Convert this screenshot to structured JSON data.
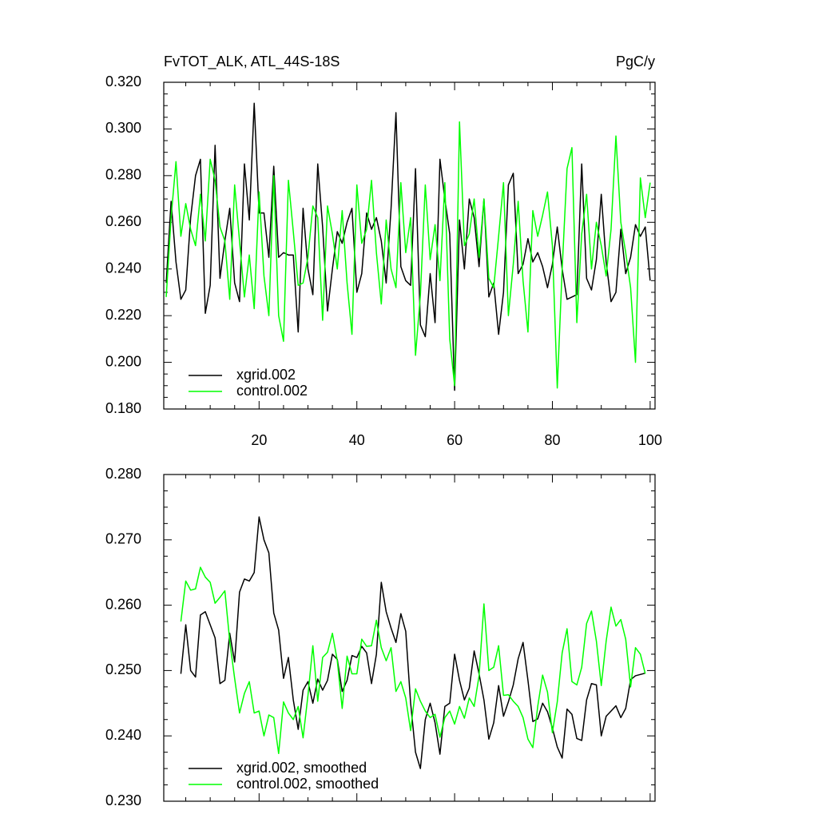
{
  "chart_data": [
    {
      "type": "line",
      "title": "FvTOT_ALK, ATL_44S-18S",
      "units_label": "PgC/y",
      "x": [
        1,
        2,
        3,
        4,
        5,
        6,
        7,
        8,
        9,
        10,
        11,
        12,
        13,
        14,
        15,
        16,
        17,
        18,
        19,
        20,
        21,
        22,
        23,
        24,
        25,
        26,
        27,
        28,
        29,
        30,
        31,
        32,
        33,
        34,
        35,
        36,
        37,
        38,
        39,
        40,
        41,
        42,
        43,
        44,
        45,
        46,
        47,
        48,
        49,
        50,
        51,
        52,
        53,
        54,
        55,
        56,
        57,
        58,
        59,
        60,
        61,
        62,
        63,
        64,
        65,
        66,
        67,
        68,
        69,
        70,
        71,
        72,
        73,
        74,
        75,
        76,
        77,
        78,
        79,
        80,
        81,
        82,
        83,
        84,
        85,
        86,
        87,
        88,
        89,
        90,
        91,
        92,
        93,
        94,
        95,
        96,
        97,
        98,
        99,
        100
      ],
      "series": [
        {
          "name": "xgrid.002",
          "color": "#000000",
          "values": [
            0.234,
            0.269,
            0.243,
            0.227,
            0.231,
            0.262,
            0.28,
            0.287,
            0.221,
            0.233,
            0.293,
            0.236,
            0.252,
            0.266,
            0.234,
            0.226,
            0.285,
            0.261,
            0.311,
            0.264,
            0.264,
            0.245,
            0.284,
            0.245,
            0.247,
            0.246,
            0.246,
            0.213,
            0.266,
            0.24,
            0.229,
            0.285,
            0.258,
            0.222,
            0.24,
            0.256,
            0.251,
            0.26,
            0.266,
            0.23,
            0.238,
            0.264,
            0.257,
            0.262,
            0.252,
            0.234,
            0.266,
            0.307,
            0.241,
            0.235,
            0.233,
            0.283,
            0.216,
            0.211,
            0.238,
            0.217,
            0.287,
            0.27,
            0.255,
            0.188,
            0.261,
            0.24,
            0.27,
            0.262,
            0.241,
            0.27,
            0.228,
            0.234,
            0.212,
            0.23,
            0.276,
            0.281,
            0.238,
            0.242,
            0.253,
            0.243,
            0.247,
            0.241,
            0.232,
            0.242,
            0.258,
            0.24,
            0.227,
            0.228,
            0.229,
            0.285,
            0.236,
            0.231,
            0.244,
            0.272,
            0.243,
            0.226,
            0.23,
            0.257,
            0.238,
            0.245,
            0.259,
            0.254,
            0.258,
            0.235
          ]
        },
        {
          "name": "control.002",
          "color": "#00ff00",
          "values": [
            0.228,
            0.262,
            0.286,
            0.254,
            0.268,
            0.257,
            0.25,
            0.272,
            0.252,
            0.287,
            0.278,
            0.258,
            0.252,
            0.227,
            0.276,
            0.252,
            0.228,
            0.246,
            0.223,
            0.273,
            0.237,
            0.22,
            0.28,
            0.22,
            0.209,
            0.278,
            0.256,
            0.233,
            0.234,
            0.245,
            0.267,
            0.262,
            0.218,
            0.267,
            0.255,
            0.24,
            0.265,
            0.234,
            0.212,
            0.276,
            0.251,
            0.257,
            0.278,
            0.247,
            0.225,
            0.261,
            0.24,
            0.232,
            0.277,
            0.247,
            0.262,
            0.203,
            0.229,
            0.276,
            0.244,
            0.259,
            0.235,
            0.277,
            0.21,
            0.19,
            0.303,
            0.25,
            0.255,
            0.27,
            0.245,
            0.27,
            0.236,
            0.232,
            0.254,
            0.277,
            0.22,
            0.242,
            0.269,
            0.235,
            0.213,
            0.265,
            0.254,
            0.263,
            0.273,
            0.25,
            0.189,
            0.24,
            0.283,
            0.292,
            0.217,
            0.255,
            0.272,
            0.24,
            0.26,
            0.25,
            0.237,
            0.257,
            0.297,
            0.26,
            0.247,
            0.232,
            0.2,
            0.279,
            0.262,
            0.277
          ]
        }
      ],
      "xlim": [
        0.5,
        101
      ],
      "xticks": [
        20,
        40,
        60,
        80,
        100
      ],
      "ylim": [
        0.18,
        0.32
      ],
      "yticks": [
        {
          "value": 0.18,
          "label": "0.180"
        },
        {
          "value": 0.2,
          "label": "0.200"
        },
        {
          "value": 0.22,
          "label": "0.220"
        },
        {
          "value": 0.24,
          "label": "0.240"
        },
        {
          "value": 0.26,
          "label": "0.260"
        },
        {
          "value": 0.28,
          "label": "0.280"
        },
        {
          "value": 0.3,
          "label": "0.300"
        },
        {
          "value": 0.32,
          "label": "0.320"
        }
      ],
      "legend": "bottom-left"
    },
    {
      "type": "line",
      "x": [
        4,
        5,
        6,
        7,
        8,
        9,
        10,
        11,
        12,
        13,
        14,
        15,
        16,
        17,
        18,
        19,
        20,
        21,
        22,
        23,
        24,
        25,
        26,
        27,
        28,
        29,
        30,
        31,
        32,
        33,
        34,
        35,
        36,
        37,
        38,
        39,
        40,
        41,
        42,
        43,
        44,
        45,
        46,
        47,
        48,
        49,
        50,
        51,
        52,
        53,
        54,
        55,
        56,
        57,
        58,
        59,
        60,
        61,
        62,
        63,
        64,
        65,
        66,
        67,
        68,
        69,
        70,
        71,
        72,
        73,
        74,
        75,
        76,
        77,
        78,
        79,
        80,
        81,
        82,
        83,
        84,
        85,
        86,
        87,
        88,
        89,
        90,
        91,
        92,
        93,
        94,
        95,
        96,
        97,
        98,
        99
      ],
      "series": [
        {
          "name": "xgrid.002, smoothed",
          "color": "#000000",
          "values": [
            0.2495,
            0.257,
            0.25,
            0.249,
            0.2585,
            0.259,
            0.257,
            0.255,
            0.248,
            0.2485,
            0.2557,
            0.2513,
            0.262,
            0.264,
            0.2637,
            0.265,
            0.2735,
            0.27,
            0.268,
            0.2588,
            0.2562,
            0.2488,
            0.252,
            0.2455,
            0.241,
            0.247,
            0.2483,
            0.245,
            0.2487,
            0.247,
            0.2485,
            0.2525,
            0.2517,
            0.2468,
            0.2485,
            0.2523,
            0.252,
            0.2537,
            0.2527,
            0.248,
            0.2525,
            0.2635,
            0.259,
            0.2565,
            0.2543,
            0.2587,
            0.256,
            0.245,
            0.2375,
            0.235,
            0.2425,
            0.245,
            0.242,
            0.2372,
            0.2445,
            0.245,
            0.2525,
            0.2485,
            0.2455,
            0.2473,
            0.253,
            0.2495,
            0.2455,
            0.2395,
            0.242,
            0.2477,
            0.243,
            0.2452,
            0.2478,
            0.2518,
            0.2543,
            0.2485,
            0.2422,
            0.2426,
            0.245,
            0.2437,
            0.2412,
            0.2383,
            0.2366,
            0.2441,
            0.2433,
            0.2396,
            0.2393,
            0.2455,
            0.248,
            0.2478,
            0.24,
            0.243,
            0.2438,
            0.2446,
            0.2428,
            0.2442,
            0.2486,
            0.2492,
            0.2494,
            0.2496
          ]
        },
        {
          "name": "control.002, smoothed",
          "color": "#00ff00",
          "values": [
            0.2575,
            0.2637,
            0.2623,
            0.2625,
            0.2658,
            0.2643,
            0.2635,
            0.2603,
            0.2612,
            0.2622,
            0.2545,
            0.2488,
            0.2435,
            0.2465,
            0.2483,
            0.2435,
            0.2438,
            0.24,
            0.2432,
            0.2428,
            0.2373,
            0.2452,
            0.2435,
            0.2425,
            0.2445,
            0.2397,
            0.2462,
            0.2538,
            0.2453,
            0.252,
            0.2528,
            0.2557,
            0.2515,
            0.2442,
            0.2522,
            0.2495,
            0.2495,
            0.2548,
            0.2537,
            0.2538,
            0.2577,
            0.2535,
            0.2515,
            0.2535,
            0.2468,
            0.2483,
            0.2458,
            0.2408,
            0.2472,
            0.2453,
            0.2438,
            0.2428,
            0.2433,
            0.2398,
            0.2428,
            0.2438,
            0.2418,
            0.2445,
            0.2427,
            0.2458,
            0.2445,
            0.2492,
            0.2602,
            0.25,
            0.2505,
            0.2538,
            0.2462,
            0.2463,
            0.2453,
            0.2445,
            0.2428,
            0.2395,
            0.2382,
            0.2445,
            0.2493,
            0.2467,
            0.2405,
            0.2452,
            0.2527,
            0.2564,
            0.2483,
            0.2478,
            0.2505,
            0.2572,
            0.2591,
            0.2545,
            0.2477,
            0.2545,
            0.2597,
            0.2568,
            0.2578,
            0.2548,
            0.2475,
            0.2535,
            0.2525,
            0.2495
          ]
        }
      ],
      "xlim": [
        0.5,
        101
      ],
      "xticks": [
        20,
        40,
        60,
        80,
        100
      ],
      "ylim": [
        0.23,
        0.28
      ],
      "yticks": [
        {
          "value": 0.23,
          "label": "0.230"
        },
        {
          "value": 0.24,
          "label": "0.240"
        },
        {
          "value": 0.25,
          "label": "0.250"
        },
        {
          "value": 0.26,
          "label": "0.260"
        },
        {
          "value": 0.27,
          "label": "0.270"
        },
        {
          "value": 0.28,
          "label": "0.280"
        }
      ],
      "legend": "bottom-left"
    }
  ]
}
